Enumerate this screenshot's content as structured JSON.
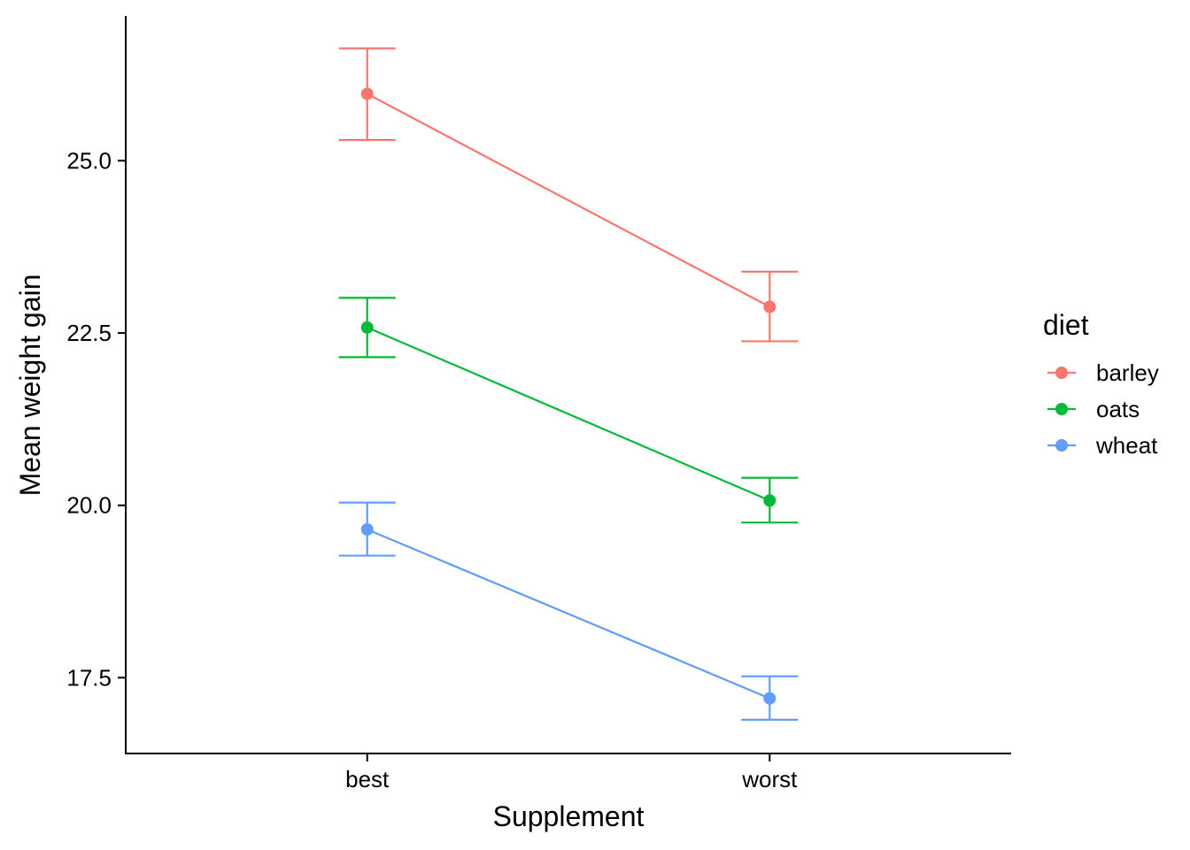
{
  "chart_data": {
    "type": "line",
    "title": "",
    "xlabel": "Supplement",
    "ylabel": "Mean weight gain",
    "categories": [
      "best",
      "worst"
    ],
    "y_ticks": [
      17.5,
      20.0,
      22.5,
      25.0
    ],
    "y_tick_labels": [
      "17.5",
      "20.0",
      "22.5",
      "25.0"
    ],
    "ylim": [
      16.4,
      27.1
    ],
    "grid": false,
    "legend": {
      "title": "diet",
      "position": "right"
    },
    "series": [
      {
        "name": "barley",
        "color": "#F8766D",
        "values": [
          25.97,
          22.88
        ],
        "lower": [
          25.3,
          22.38
        ],
        "upper": [
          26.63,
          23.39
        ]
      },
      {
        "name": "oats",
        "color": "#00BA38",
        "values": [
          22.58,
          20.07
        ],
        "lower": [
          22.15,
          19.75
        ],
        "upper": [
          23.01,
          20.4
        ]
      },
      {
        "name": "wheat",
        "color": "#619CFF",
        "values": [
          19.65,
          17.2
        ],
        "lower": [
          19.27,
          16.89
        ],
        "upper": [
          20.04,
          17.52
        ]
      }
    ]
  }
}
